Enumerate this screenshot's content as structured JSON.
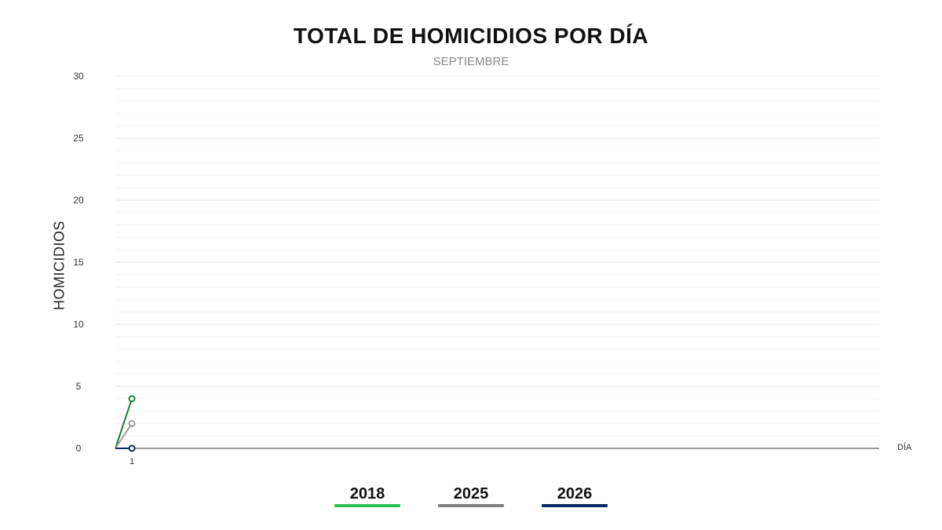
{
  "chart_data": {
    "type": "line",
    "title": "TOTAL DE HOMICIDIOS POR DÍA",
    "subtitle": "SEPTIEMBRE",
    "ylabel": "HOMICIDIOS",
    "xlabel": "DÍA",
    "ylim": [
      0,
      30
    ],
    "y_ticks": [
      0,
      5,
      10,
      15,
      20,
      25,
      30
    ],
    "x_ticks": [
      1
    ],
    "grid": true,
    "legend_position": "bottom",
    "x": [
      0,
      1
    ],
    "series": [
      {
        "name": "2018",
        "values": [
          0,
          4
        ],
        "color": "#1e7a3e"
      },
      {
        "name": "2025",
        "values": [
          0,
          2
        ],
        "color": "#9a9a9a"
      },
      {
        "name": "2026",
        "values": [
          0,
          0
        ],
        "color": "#0b2a66"
      }
    ],
    "legend_colors": [
      "#2bbf55",
      "#7f7f7f",
      "#0b2a66"
    ]
  }
}
